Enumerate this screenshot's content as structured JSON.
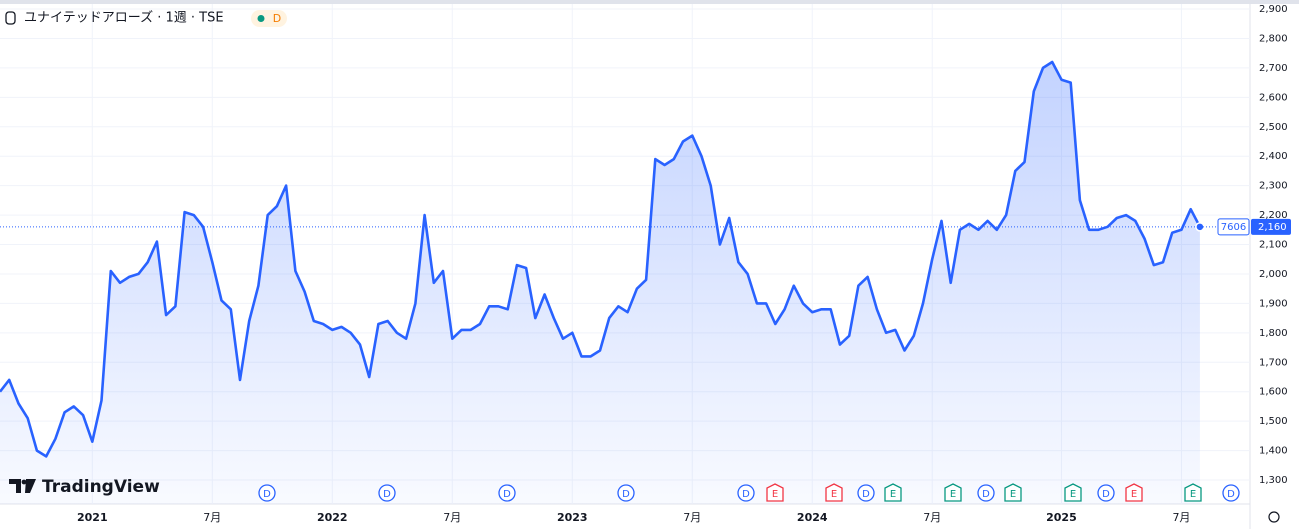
{
  "chart_data": {
    "type": "area",
    "title": "ユナイテッドアローズ · 1週 · TSE",
    "interval_badge": "D",
    "brand": "TradingView",
    "symbol_code": "7606",
    "last_price": {
      "value": 2160,
      "label": "2,160"
    },
    "color": "#2962ff",
    "categories": [
      null,
      null,
      null,
      null,
      null,
      null,
      null,
      null,
      null,
      null,
      "2021",
      null,
      null,
      null,
      null,
      null,
      null,
      null,
      null,
      null,
      null,
      null,
      null,
      "7月",
      null,
      null,
      null,
      null,
      null,
      null,
      null,
      null,
      null,
      null,
      null,
      null,
      "2022",
      null,
      null,
      null,
      null,
      null,
      null,
      null,
      null,
      null,
      null,
      null,
      null,
      "7月",
      null,
      null,
      null,
      null,
      null,
      null,
      null,
      null,
      null,
      null,
      null,
      null,
      "2023",
      null,
      null,
      null,
      null,
      null,
      null,
      null,
      null,
      null,
      null,
      null,
      null,
      "7月",
      null,
      null,
      null,
      null,
      null,
      null,
      null,
      null,
      null,
      null,
      null,
      null,
      "2024",
      null,
      null,
      null,
      null,
      null,
      null,
      null,
      null,
      null,
      null,
      null,
      null,
      "7月",
      null,
      null,
      null,
      null,
      null,
      null,
      null,
      null,
      null,
      null,
      null,
      null,
      null,
      "2025",
      null,
      null,
      null,
      null,
      null,
      null,
      null,
      null,
      null,
      null,
      null,
      null,
      "7月",
      null,
      null
    ],
    "values": [
      1600,
      1640,
      1560,
      1510,
      1400,
      1380,
      1440,
      1530,
      1550,
      1520,
      1430,
      1570,
      2010,
      1970,
      1990,
      2000,
      2040,
      2110,
      1860,
      1890,
      2210,
      2200,
      2160,
      2040,
      1910,
      1880,
      1640,
      1840,
      1960,
      2200,
      2230,
      2300,
      2010,
      1940,
      1840,
      1830,
      1810,
      1820,
      1800,
      1760,
      1650,
      1830,
      1840,
      1800,
      1780,
      1900,
      2200,
      1970,
      2010,
      1780,
      1810,
      1810,
      1830,
      1890,
      1890,
      1880,
      2030,
      2020,
      1850,
      1930,
      1850,
      1780,
      1800,
      1720,
      1720,
      1740,
      1850,
      1890,
      1870,
      1950,
      1980,
      2390,
      2370,
      2390,
      2450,
      2470,
      2400,
      2300,
      2100,
      2190,
      2040,
      2000,
      1900,
      1900,
      1830,
      1880,
      1960,
      1900,
      1870,
      1880,
      1880,
      1760,
      1790,
      1960,
      1990,
      1880,
      1800,
      1810,
      1740,
      1790,
      1900,
      2050,
      2180,
      1970,
      2150,
      2170,
      2150,
      2180,
      2150,
      2200,
      2350,
      2380,
      2620,
      2700,
      2720,
      2660,
      2650,
      2250,
      2150,
      2150,
      2160,
      2190,
      2200,
      2180,
      2120,
      2030,
      2040,
      2140,
      2150,
      2220,
      2160
    ],
    "ylim": [
      1300,
      2900
    ],
    "yticks": [
      {
        "value": 1300,
        "label": "1,300"
      },
      {
        "value": 1400,
        "label": "1,400"
      },
      {
        "value": 1500,
        "label": "1,500"
      },
      {
        "value": 1600,
        "label": "1,600"
      },
      {
        "value": 1700,
        "label": "1,700"
      },
      {
        "value": 1800,
        "label": "1,800"
      },
      {
        "value": 1900,
        "label": "1,900"
      },
      {
        "value": 2000,
        "label": "2,000"
      },
      {
        "value": 2100,
        "label": "2,100"
      },
      {
        "value": 2200,
        "label": "2,200"
      },
      {
        "value": 2300,
        "label": "2,300"
      },
      {
        "value": 2400,
        "label": "2,400"
      },
      {
        "value": 2500,
        "label": "2,500"
      },
      {
        "value": 2600,
        "label": "2,600"
      },
      {
        "value": 2700,
        "label": "2,700"
      },
      {
        "value": 2800,
        "label": "2,800"
      },
      {
        "value": 2900,
        "label": "2,900"
      }
    ],
    "grid": true,
    "events": [
      {
        "label": "D",
        "color": "#2962ff"
      },
      {
        "label": "D",
        "color": "#2962ff"
      },
      {
        "label": "D",
        "color": "#2962ff"
      },
      {
        "label": "D",
        "color": "#2962ff"
      },
      {
        "label": "D",
        "color": "#2962ff"
      },
      {
        "label": "E",
        "color": "#f23645"
      },
      {
        "label": "E",
        "color": "#f23645"
      },
      {
        "label": "D",
        "color": "#2962ff"
      },
      {
        "label": "E",
        "color": "#089981"
      },
      {
        "label": "E",
        "color": "#089981"
      },
      {
        "label": "D",
        "color": "#2962ff"
      },
      {
        "label": "E",
        "color": "#089981"
      },
      {
        "label": "E",
        "color": "#089981"
      },
      {
        "label": "D",
        "color": "#2962ff"
      },
      {
        "label": "E",
        "color": "#f23645"
      },
      {
        "label": "E",
        "color": "#089981"
      },
      {
        "label": "D",
        "color": "#2962ff"
      }
    ]
  }
}
